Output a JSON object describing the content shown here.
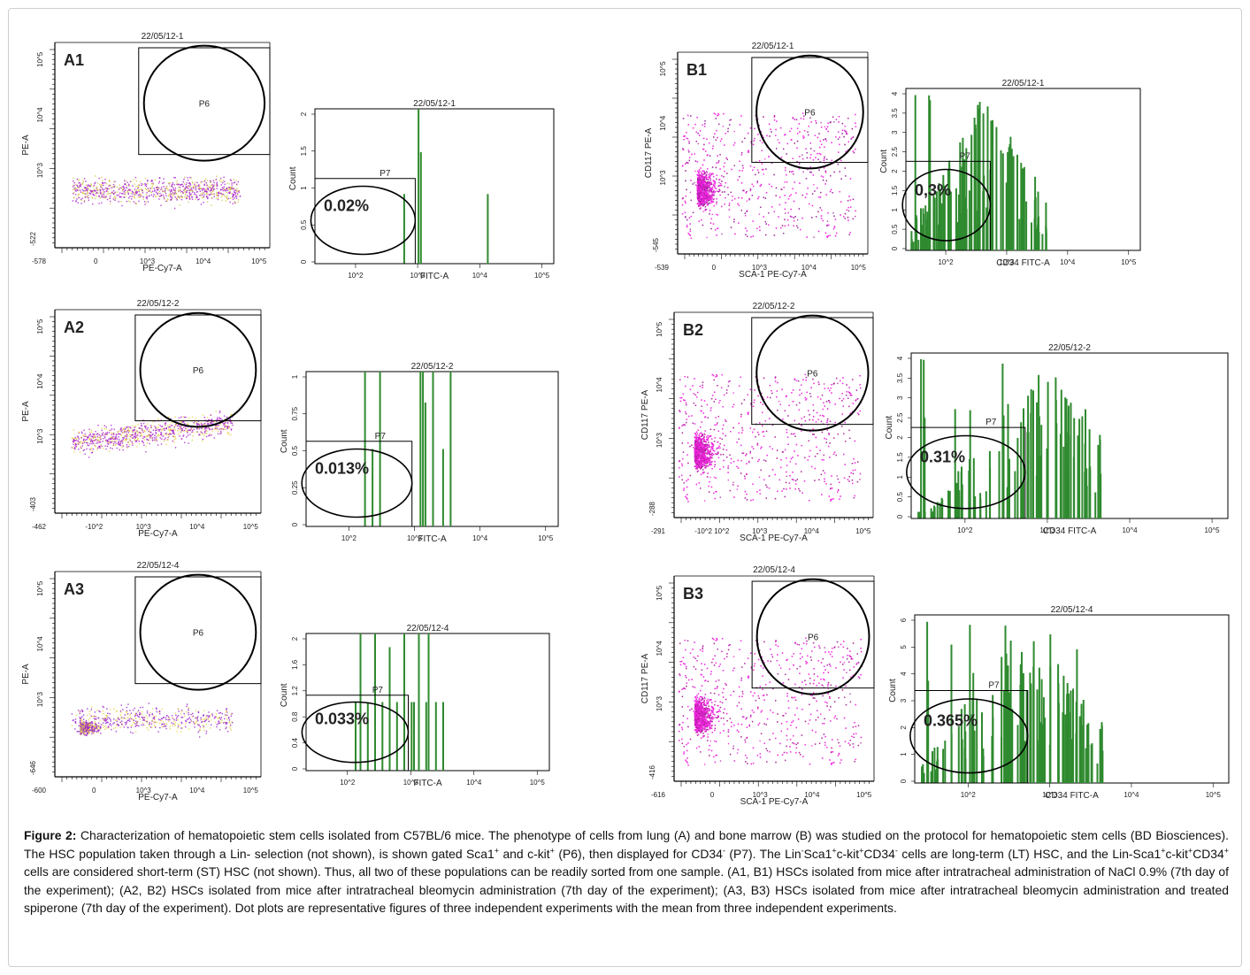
{
  "figure": {
    "panels": [
      {
        "id": "A1",
        "dot": {
          "title": "22/05/12-1",
          "xlabel": "PE-Cy7-A",
          "ylabel": "PE-A",
          "gate": "P6",
          "ymin": "-522",
          "xmin": "-578",
          "zero_x": "0",
          "colors": [
            "#aa22cc",
            "#d4c84a"
          ]
        },
        "hist": {
          "title": "22/05/12-1",
          "xlabel": "FITC-A",
          "ylabel": "Count",
          "gate": "P7",
          "pct": "0.02%",
          "yticks": [
            "2",
            "1.5",
            "1",
            "0.5",
            "0"
          ],
          "ymax": 2
        }
      },
      {
        "id": "A2",
        "dot": {
          "title": "22/05/12-2",
          "xlabel": "PE-Cy7-A",
          "ylabel": "PE-A",
          "gate": "P6",
          "ymin": "-403",
          "xmin": "-462",
          "zero_x": "-10^2",
          "colors": [
            "#aa22cc",
            "#e6d44a"
          ]
        },
        "hist": {
          "title": "22/05/12-2",
          "xlabel": "FITC-A",
          "ylabel": "Count",
          "gate": "P7",
          "pct": "0.013%",
          "yticks": [
            "1",
            "0.75",
            "0.5",
            "0.25",
            "0"
          ],
          "ymax": 1
        }
      },
      {
        "id": "A3",
        "dot": {
          "title": "22/05/12-4",
          "xlabel": "PE-Cy7-A",
          "ylabel": "PE-A",
          "gate": "P6",
          "ymin": "-646",
          "xmin": "-600",
          "zero_x": "0",
          "colors": [
            "#9a22cc",
            "#e6d44a"
          ]
        },
        "hist": {
          "title": "22/05/12-4",
          "xlabel": "FITC-A",
          "ylabel": "Count",
          "gate": "P7",
          "pct": "0.033%",
          "yticks": [
            "2",
            "1.6",
            "1.2",
            "0.8",
            "0.4",
            "0"
          ],
          "ymax": 2
        }
      },
      {
        "id": "B1",
        "dot": {
          "title": "22/05/12-1",
          "xlabel": "SCA-1 PE-Cy7-A",
          "ylabel": "CD117 PE-A",
          "gate": "P6",
          "ymin": "-545",
          "xmin": "-539",
          "zero_x": "0",
          "colors": [
            "#ee22dd",
            "#992299"
          ]
        },
        "hist": {
          "title": "22/05/12-1",
          "xlabel": "CD34 FITC-A",
          "ylabel": "Count",
          "gate": "P7",
          "pct": "0,3%",
          "yticks": [
            "4",
            "3.5",
            "3",
            "2.5",
            "2",
            "1.5",
            "1",
            "0.5",
            "0"
          ],
          "ymax": 4
        }
      },
      {
        "id": "B2",
        "dot": {
          "title": "22/05/12-2",
          "xlabel": "SCA-1 PE-Cy7-A",
          "ylabel": "CD117 PE-A",
          "gate": "P6",
          "ymin": "-288",
          "xmin": "-291",
          "zero_x": "-10^2 10^2",
          "colors": [
            "#ee22dd",
            "#aa2299"
          ]
        },
        "hist": {
          "title": "22/05/12-2",
          "xlabel": "CD34 FITC-A",
          "ylabel": "Count",
          "gate": "P7",
          "pct": "0.31%",
          "yticks": [
            "4",
            "3.5",
            "3",
            "2.5",
            "2",
            "1.5",
            "1",
            "0.5",
            "0"
          ],
          "ymax": 4
        }
      },
      {
        "id": "B3",
        "dot": {
          "title": "22/05/12-4",
          "xlabel": "SCA-1 PE-Cy7-A",
          "ylabel": "CD117 PE-A",
          "gate": "P6",
          "ymin": "-416",
          "xmin": "-616",
          "zero_x": "0",
          "colors": [
            "#ee22dd",
            "#aa2299"
          ]
        },
        "hist": {
          "title": "22/05/12-4",
          "xlabel": "CD34 FITC-A",
          "ylabel": "Count",
          "gate": "P7",
          "pct": "0.365%",
          "yticks": [
            "6",
            "5",
            "4",
            "3",
            "2",
            "1",
            "0"
          ],
          "ymax": 6
        }
      }
    ]
  },
  "caption": {
    "label": "Figure 2:",
    "html": " Characterization of hematopoietic stem cells isolated from C57BL/6 mice. The phenotype of cells from lung (A) and bone marrow (B) was studied on the protocol for hematopoietic stem cells (BD Biosciences). The HSC population taken through a Lin- selection (not shown), is shown gated Sca1<sup>+</sup> and c-kit<sup>+</sup> (P6), then displayed for CD34<sup>-</sup> (P7). The Lin<sup>-</sup>Sca1<sup>+</sup>c-kit<sup>+</sup>CD34<sup>-</sup> cells are long-term (LT) HSC, and the Lin-Sca1<sup>+</sup>c-kit<sup>+</sup>CD34<sup>+</sup> cells are considered short-term (ST) HSC (not shown). Thus, all two of these populations can be readily sorted from one sample. (A1, B1) HSCs isolated from mice after intratracheal administration of NaCl 0.9% (7th day of the experiment); (A2, B2) HSCs isolated from mice after intratracheal bleomycin administration (7th day of the experiment); (A3, B3) HSCs isolated from mice after intratracheal bleomycin administration and treated spiperone (7th day of the experiment). Dot plots are representative figures of three independent experiments with the mean from three independent experiments."
  }
}
